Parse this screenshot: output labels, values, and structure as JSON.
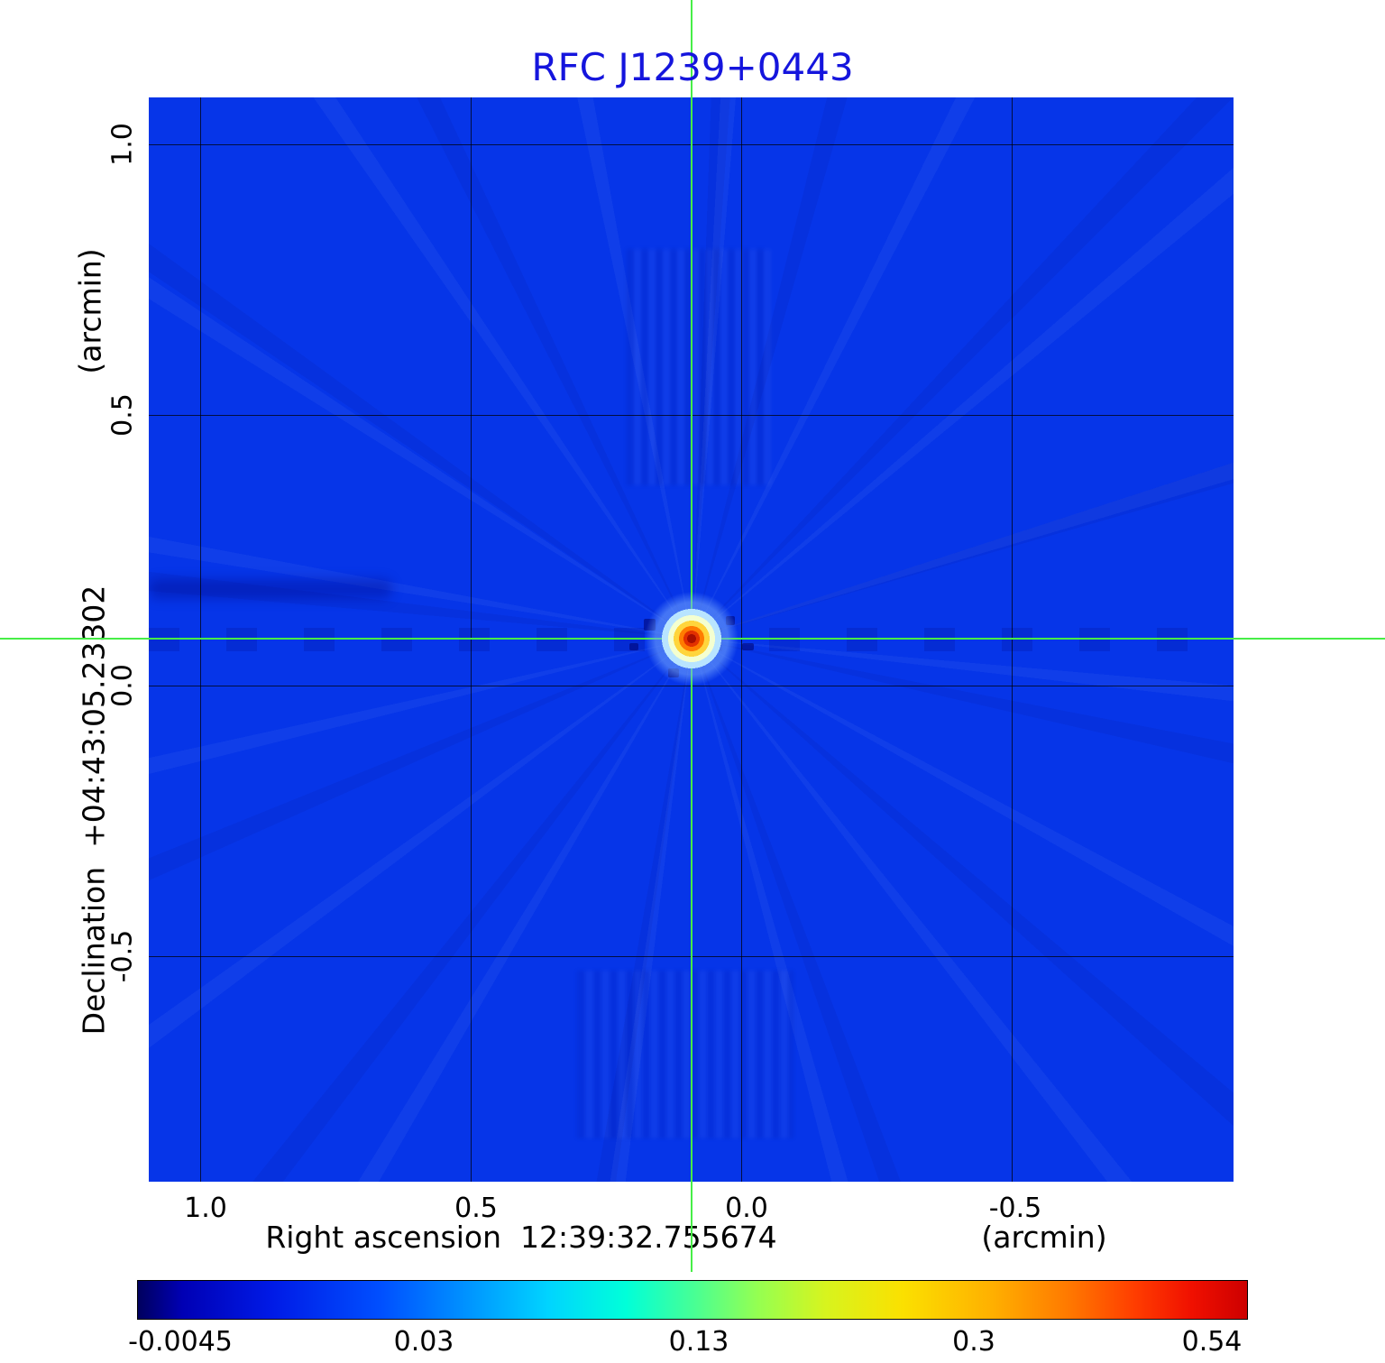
{
  "title": "RFC J1239+0443",
  "colors": {
    "title_blue": "#1515dd",
    "field_blue": "#0635e8",
    "crosshair_green": "#47ee47",
    "grid_black": "#000000",
    "peak_red": "#a80f00"
  },
  "axes": {
    "x": {
      "label": "Right ascension  12:39:32.755674",
      "unit": "(arcmin)",
      "ticks": [
        "1.0",
        "0.5",
        "0.0",
        "-0.5"
      ]
    },
    "y": {
      "label": "Declination  +04:43:05.23302",
      "unit": "(arcmin)",
      "ticks": [
        "1.0",
        "0.5",
        "0.0",
        "-0.5"
      ]
    }
  },
  "colorbar": {
    "ticks": [
      "-0.0045",
      "0.03",
      "0.13",
      "0.3",
      "0.54"
    ]
  },
  "chart_data": {
    "type": "heatmap",
    "title": "RFC J1239+0443",
    "xlabel": "Right ascension 12:39:32.755674 (arcmin)",
    "ylabel": "Declination +04:43:05.23302 (arcmin)",
    "x_range_arcmin": [
      1.12,
      -1.12
    ],
    "y_range_arcmin": [
      -1.08,
      1.12
    ],
    "x_ticks": [
      1.0,
      0.5,
      0.0,
      -0.5
    ],
    "y_ticks": [
      1.0,
      0.5,
      0.0,
      -0.5
    ],
    "grid": true,
    "colormap": "jet",
    "scale": "nonlinear",
    "colorbar_ticks": [
      -0.0045,
      0.03,
      0.13,
      0.3,
      0.54
    ],
    "background_level": 0.0,
    "peak": {
      "x_arcmin": 0.1,
      "y_arcmin": 0.09,
      "value": 0.54
    },
    "crosshair_arcmin": {
      "x": 0.1,
      "y": 0.09
    },
    "features": "compact point source at crosshair with jet-colormap core (red/orange/yellow/white halo), faint radial sidelobe rays and horizontal negative stripe through source row on uniform blue background",
    "legend_position": "horizontal colorbar at bottom"
  }
}
